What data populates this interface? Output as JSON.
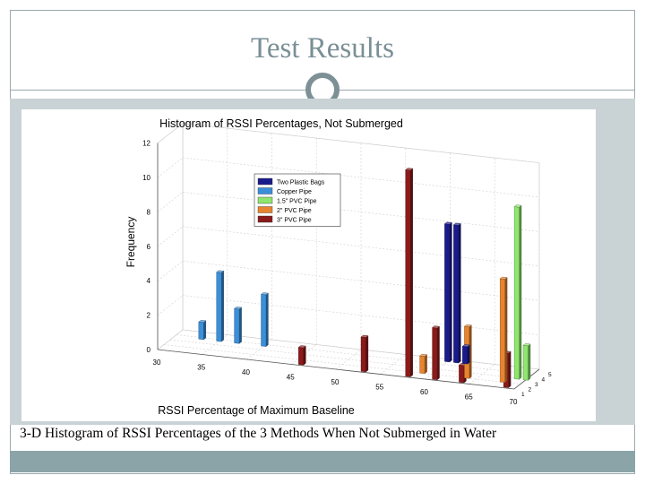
{
  "slide": {
    "title": "Test Results",
    "caption": "3-D Histogram of RSSI Percentages of the 3 Methods When Not Submerged in Water"
  },
  "colors": {
    "Two Plastic Bags": "#1a1a8c",
    "Copper Pipe": "#3b8fd9",
    "1.5\" PVC Pipe": "#8fe66e",
    "2\" PVC Pipe": "#e8842f",
    "3\" PVC Pipe": "#8b1a1a"
  },
  "chart_data": {
    "type": "bar",
    "title": "Histogram of RSSI Percentages, Not Submerged",
    "xlabel": "RSSI Percentage of Maximum Baseline",
    "ylabel": "Frequency",
    "xlim": [
      30,
      70
    ],
    "ylim": [
      0,
      12
    ],
    "xticks": [
      30,
      35,
      40,
      45,
      50,
      55,
      60,
      65,
      70
    ],
    "yticks": [
      0,
      2,
      4,
      6,
      8,
      10,
      12
    ],
    "depth_tick_labels": [
      "1",
      "2",
      "3",
      "4",
      "5"
    ],
    "grid": true,
    "legend_position": "upper-middle",
    "series": [
      {
        "name": "Two Plastic Bags",
        "points": [
          {
            "x": 60,
            "y": 8
          },
          {
            "x": 61,
            "y": 8
          },
          {
            "x": 62,
            "y": 1
          }
        ]
      },
      {
        "name": "Copper Pipe",
        "points": [
          {
            "x": 33,
            "y": 1
          },
          {
            "x": 35,
            "y": 4
          },
          {
            "x": 37,
            "y": 2
          },
          {
            "x": 40,
            "y": 3
          }
        ]
      },
      {
        "name": "1.5\" PVC Pipe",
        "points": [
          {
            "x": 69,
            "y": 10
          },
          {
            "x": 70,
            "y": 2
          }
        ]
      },
      {
        "name": "2\" PVC Pipe",
        "points": [
          {
            "x": 59,
            "y": 1
          },
          {
            "x": 64,
            "y": 3
          },
          {
            "x": 68,
            "y": 6
          }
        ]
      },
      {
        "name": "3\" PVC Pipe",
        "points": [
          {
            "x": 46,
            "y": 1
          },
          {
            "x": 53,
            "y": 2
          },
          {
            "x": 58,
            "y": 12
          },
          {
            "x": 61,
            "y": 3
          },
          {
            "x": 64,
            "y": 1
          },
          {
            "x": 69,
            "y": 2
          }
        ]
      }
    ]
  }
}
